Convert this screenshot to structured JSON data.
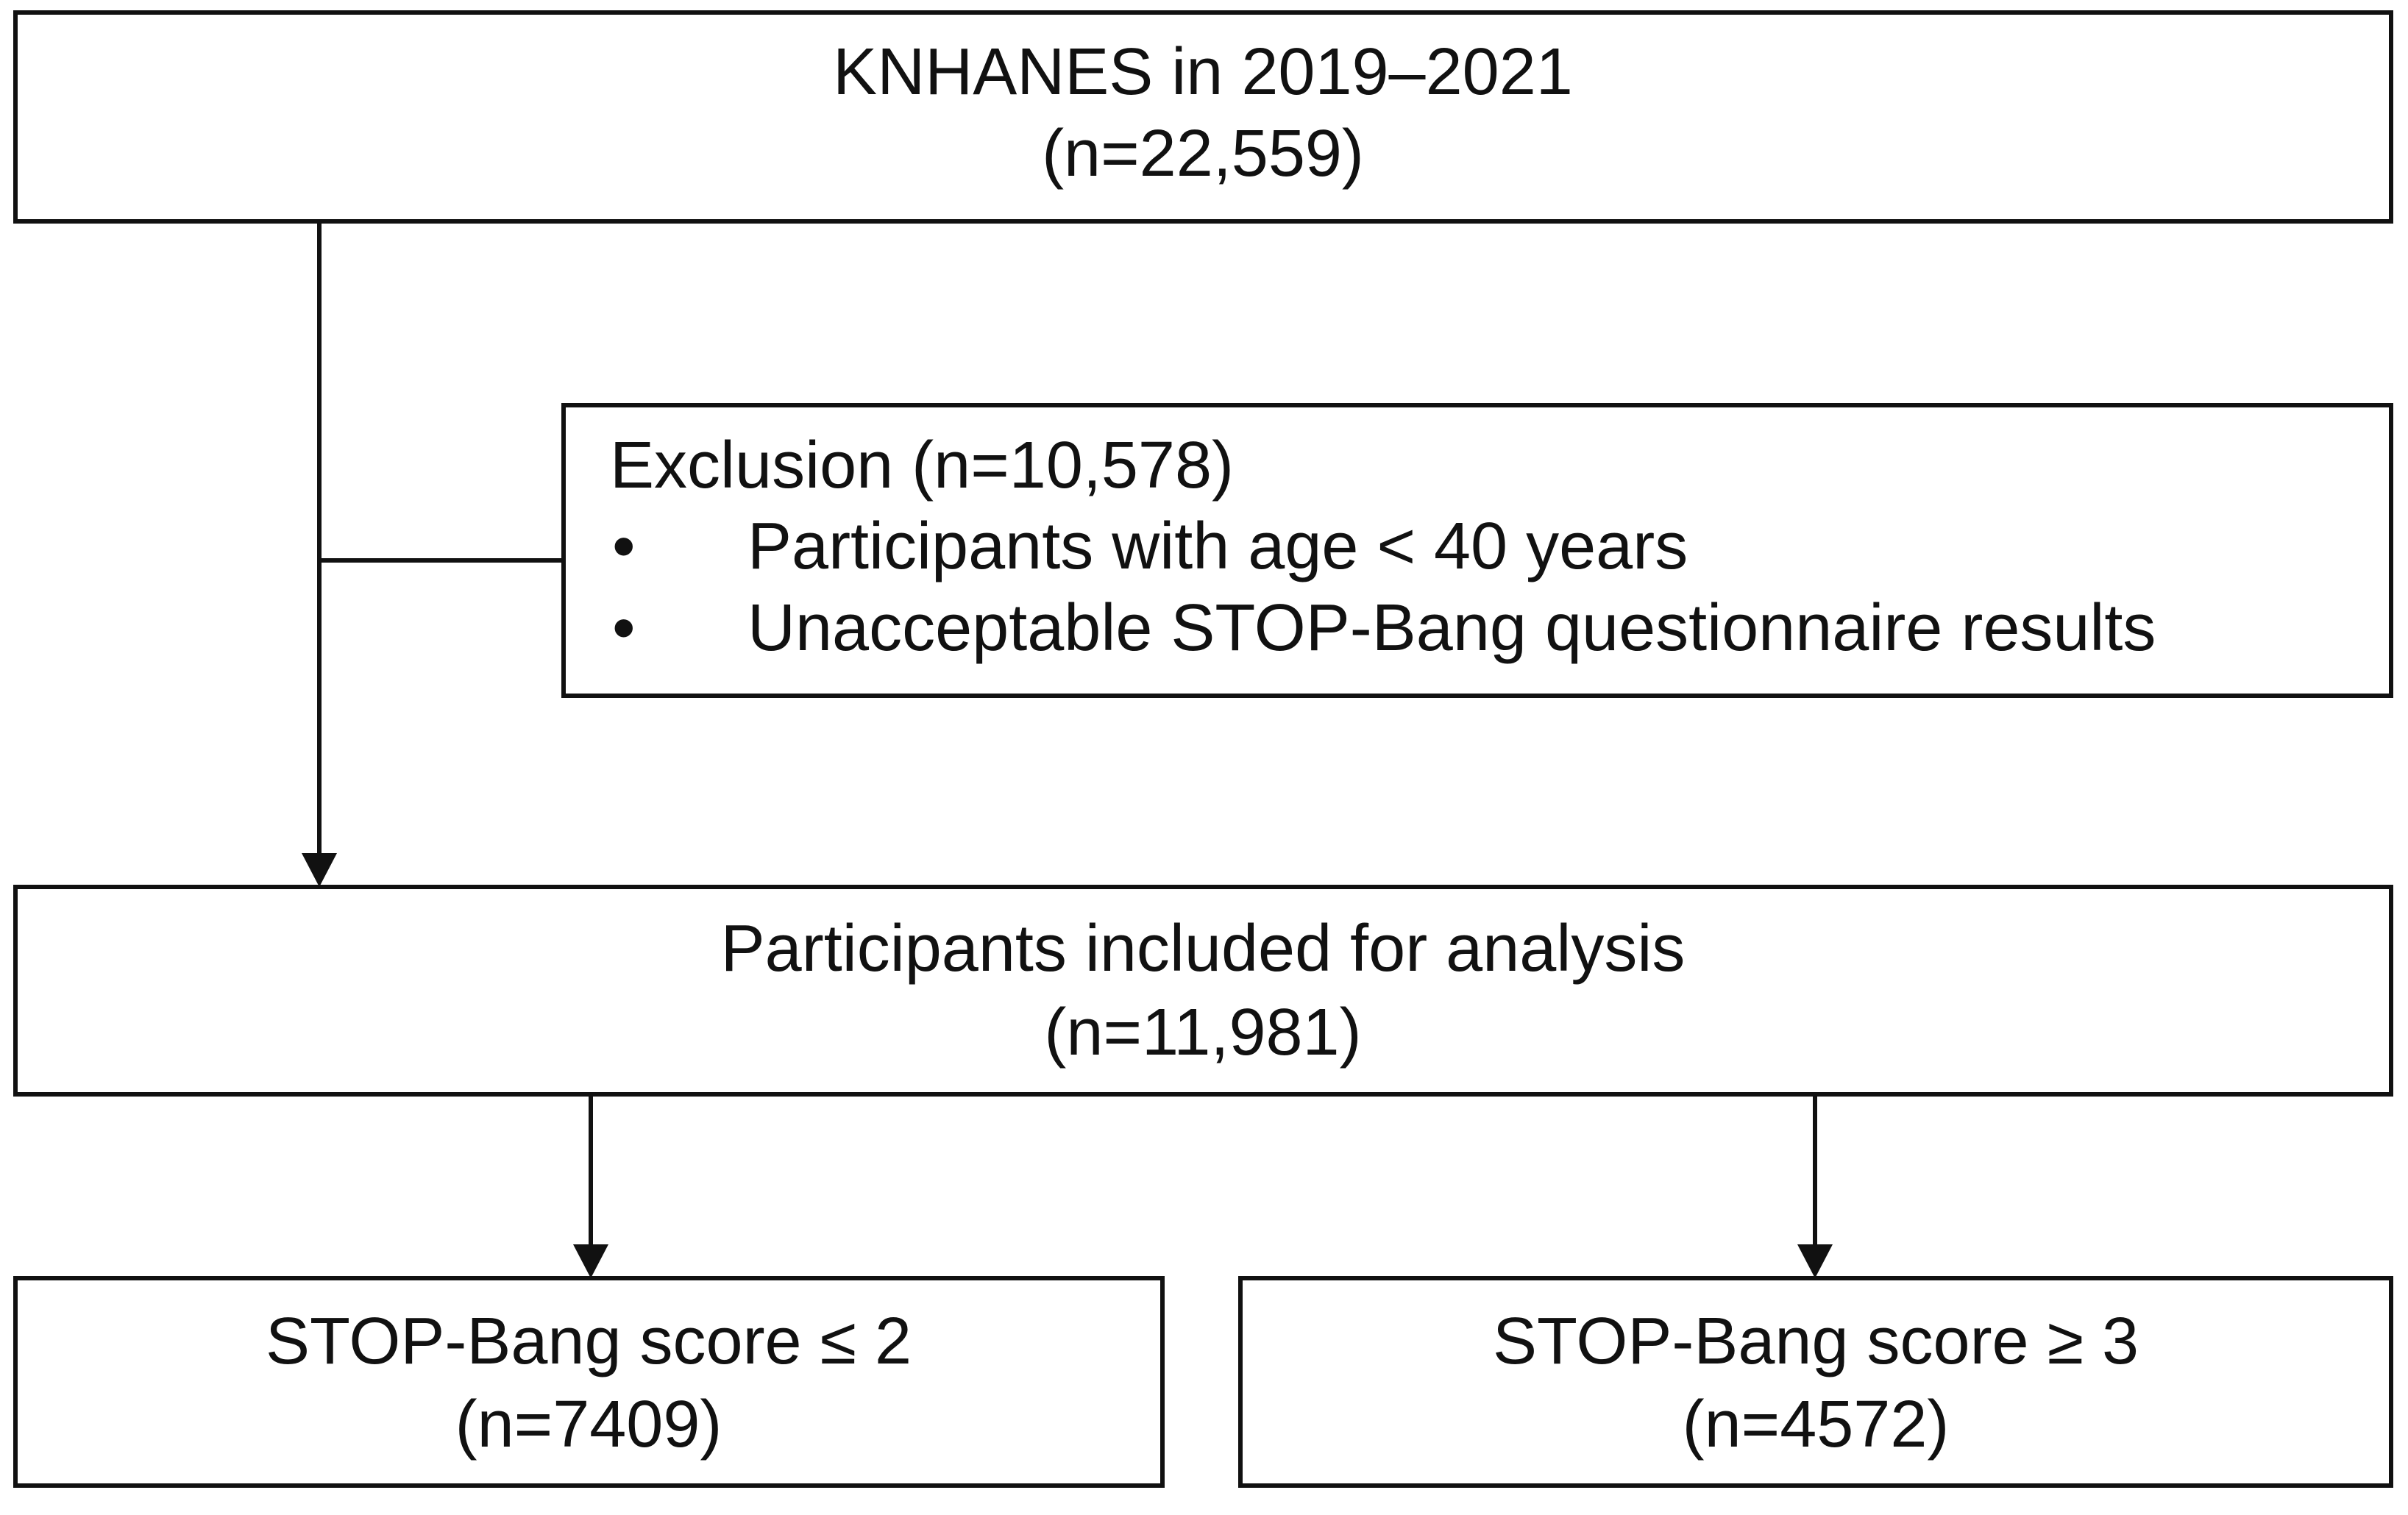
{
  "nodes": [
    {
      "lines": [
        "KNHANES in 2019–2021",
        "(n=22,559)"
      ]
    },
    {
      "title": "Exclusion (n=10,578)",
      "items": [
        "Participants with age < 40 years",
        "Unacceptable STOP-Bang questionnaire results"
      ]
    },
    {
      "lines": [
        "Participants included for analysis",
        "(n=11,981)"
      ]
    },
    {
      "lines": [
        "STOP-Bang score ≤ 2",
        "(n=7409)"
      ]
    },
    {
      "lines": [
        "STOP-Bang score ≥ 3",
        "(n=4572)"
      ]
    }
  ]
}
